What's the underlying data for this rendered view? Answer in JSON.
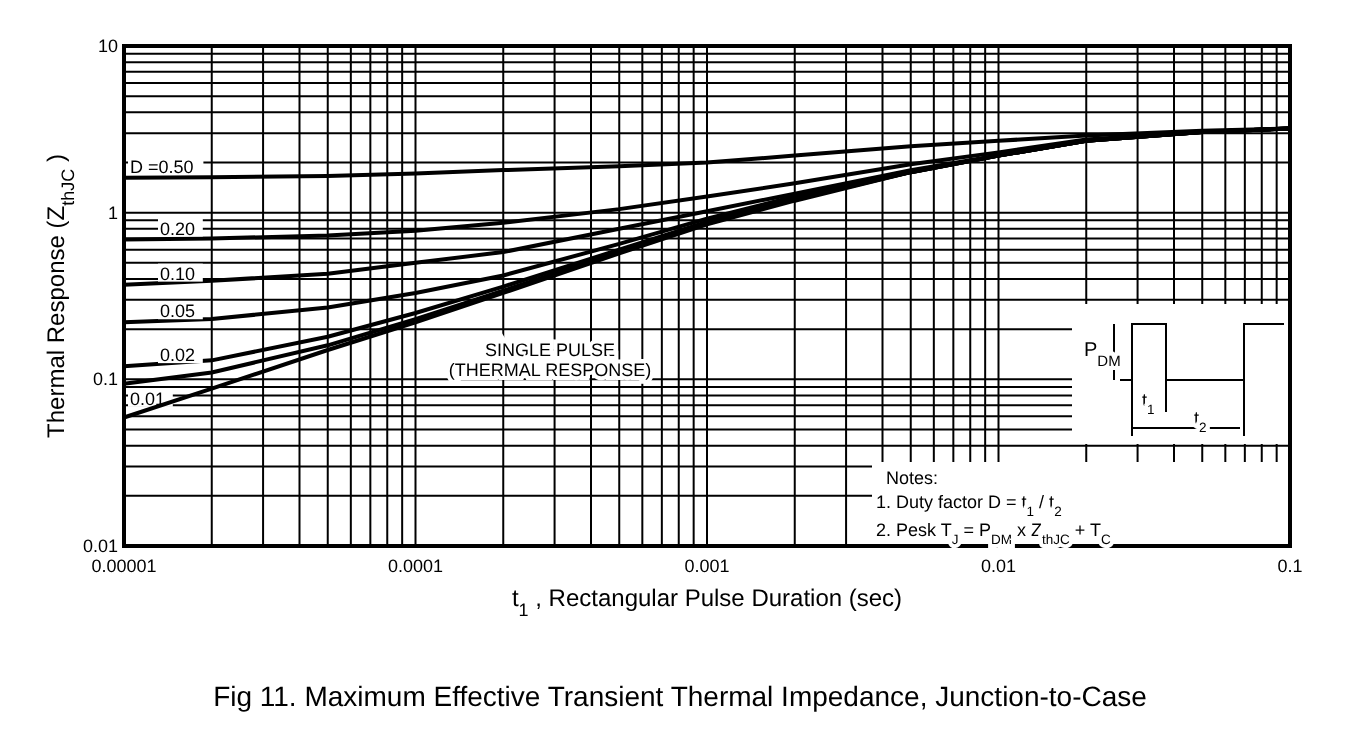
{
  "chart_data": {
    "type": "line",
    "title": "Fig 11. Maximum Effective Transient Thermal Impedance, Junction-to-Case",
    "xlabel": "t$_{1}$ , Rectangular Pulse Duration (sec)",
    "ylabel": "Thermal Response (Z$_{thJC}$ )",
    "log": "xy",
    "grid": true,
    "legend": false,
    "marker": "none",
    "line_style": "solid",
    "x": [
      1e-05,
      2e-05,
      5e-05,
      0.0001,
      0.0002,
      0.0005,
      0.001,
      0.002,
      0.005,
      0.01,
      0.02,
      0.05,
      0.1
    ],
    "xlim": [
      1e-05,
      0.1
    ],
    "ylim": [
      0.01,
      10
    ],
    "xticks": [
      {
        "value": 1e-05,
        "label": "0.00001"
      },
      {
        "value": 2e-05,
        "label": null
      },
      {
        "value": 3e-05,
        "label": null
      },
      {
        "value": 4e-05,
        "label": null
      },
      {
        "value": 5e-05,
        "label": null
      },
      {
        "value": 6e-05,
        "label": null
      },
      {
        "value": 7e-05,
        "label": null
      },
      {
        "value": 8e-05,
        "label": null
      },
      {
        "value": 9e-05,
        "label": null
      },
      {
        "value": 0.0001,
        "label": "0.0001"
      },
      {
        "value": 0.0002,
        "label": null
      },
      {
        "value": 0.0003,
        "label": null
      },
      {
        "value": 0.0004,
        "label": null
      },
      {
        "value": 0.0005,
        "label": null
      },
      {
        "value": 0.0006,
        "label": null
      },
      {
        "value": 0.0007,
        "label": null
      },
      {
        "value": 0.0008,
        "label": null
      },
      {
        "value": 0.0009,
        "label": null
      },
      {
        "value": 0.001,
        "label": "0.001"
      },
      {
        "value": 0.002,
        "label": null
      },
      {
        "value": 0.003,
        "label": null
      },
      {
        "value": 0.004,
        "label": null
      },
      {
        "value": 0.005,
        "label": null
      },
      {
        "value": 0.006,
        "label": null
      },
      {
        "value": 0.007,
        "label": null
      },
      {
        "value": 0.008,
        "label": null
      },
      {
        "value": 0.009,
        "label": null
      },
      {
        "value": 0.01,
        "label": "0.01"
      },
      {
        "value": 0.02,
        "label": null
      },
      {
        "value": 0.03,
        "label": null
      },
      {
        "value": 0.04,
        "label": null
      },
      {
        "value": 0.05,
        "label": null
      },
      {
        "value": 0.06,
        "label": null
      },
      {
        "value": 0.07,
        "label": null
      },
      {
        "value": 0.08,
        "label": null
      },
      {
        "value": 0.09,
        "label": null
      },
      {
        "value": 0.1,
        "label": "0.1"
      }
    ],
    "yticks": [
      {
        "value": 0.01,
        "label": "0.01"
      },
      {
        "value": 0.02,
        "label": null
      },
      {
        "value": 0.03,
        "label": null
      },
      {
        "value": 0.04,
        "label": null
      },
      {
        "value": 0.05,
        "label": null
      },
      {
        "value": 0.06,
        "label": null
      },
      {
        "value": 0.07,
        "label": null
      },
      {
        "value": 0.08,
        "label": null
      },
      {
        "value": 0.09,
        "label": null
      },
      {
        "value": 0.1,
        "label": "0.1"
      },
      {
        "value": 0.2,
        "label": null
      },
      {
        "value": 0.3,
        "label": null
      },
      {
        "value": 0.4,
        "label": null
      },
      {
        "value": 0.5,
        "label": null
      },
      {
        "value": 0.6,
        "label": null
      },
      {
        "value": 0.7,
        "label": null
      },
      {
        "value": 0.8,
        "label": null
      },
      {
        "value": 0.9,
        "label": null
      },
      {
        "value": 1,
        "label": "1"
      },
      {
        "value": 2,
        "label": null
      },
      {
        "value": 3,
        "label": null
      },
      {
        "value": 4,
        "label": null
      },
      {
        "value": 5,
        "label": null
      },
      {
        "value": 6,
        "label": null
      },
      {
        "value": 7,
        "label": null
      },
      {
        "value": 8,
        "label": null
      },
      {
        "value": 9,
        "label": null
      },
      {
        "value": 10,
        "label": "10"
      }
    ],
    "series": [
      {
        "name": "D =0.50",
        "color": "#000000",
        "values": [
          1.62,
          1.63,
          1.66,
          1.72,
          1.8,
          1.9,
          2.0,
          2.2,
          2.5,
          2.7,
          2.9,
          3.1,
          3.2
        ]
      },
      {
        "name": "0.20",
        "color": "#000000",
        "values": [
          0.69,
          0.7,
          0.73,
          0.78,
          0.87,
          1.05,
          1.25,
          1.5,
          1.95,
          2.3,
          2.75,
          3.05,
          3.2
        ]
      },
      {
        "name": "0.10",
        "color": "#000000",
        "values": [
          0.37,
          0.39,
          0.43,
          0.5,
          0.58,
          0.8,
          1.02,
          1.3,
          1.8,
          2.2,
          2.7,
          3.05,
          3.2
        ]
      },
      {
        "name": "0.05",
        "color": "#000000",
        "values": [
          0.22,
          0.23,
          0.27,
          0.33,
          0.42,
          0.65,
          0.92,
          1.25,
          1.75,
          2.2,
          2.7,
          3.05,
          3.2
        ]
      },
      {
        "name": "0.02",
        "color": "#000000",
        "values": [
          0.12,
          0.13,
          0.18,
          0.25,
          0.36,
          0.6,
          0.88,
          1.22,
          1.75,
          2.2,
          2.7,
          3.05,
          3.2
        ]
      },
      {
        "name": "0.01",
        "color": "#000000",
        "values": [
          0.094,
          0.11,
          0.16,
          0.23,
          0.34,
          0.58,
          0.86,
          1.2,
          1.75,
          2.2,
          2.7,
          3.05,
          3.2
        ]
      },
      {
        "color": "#000000",
        "values": [
          0.059,
          0.088,
          0.15,
          0.22,
          0.33,
          0.57,
          0.85,
          1.18,
          1.75,
          2.2,
          2.7,
          3.05,
          3.2
        ]
      }
    ],
    "annotations": [
      "SINGLE PULSE",
      "(THERMAL RESPONSE)",
      "P$_{DM}$",
      "t$_{1}$",
      "t$_{2}$",
      "Notes:",
      "1. Duty factor D =  t$_{1}$ / t$_{2}$",
      "2. Pesk T$_{J}$ = P$_{DM}$ x Z$_{thJC}$ + T$_{C}$"
    ]
  }
}
